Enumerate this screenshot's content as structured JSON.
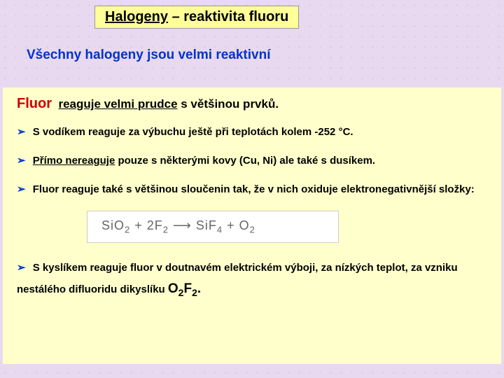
{
  "title": {
    "underlined": "Halogeny",
    "rest": " – reaktivita fluoru"
  },
  "subtitle": "Všechny halogeny jsou velmi reaktivní",
  "fluor": {
    "name": "Fluor",
    "under": "reaguje velmi prudce",
    "rest": " s většinou prvků."
  },
  "bullets": {
    "b1": "S vodíkem reaguje za výbuchu ještě při teplotách kolem -252 °C.",
    "b2_under": "Přímo nereaguje",
    "b2_rest": " pouze s některými kovy (Cu, Ni) ale také s dusíkem.",
    "b3": "Fluor reaguje také s většinou sloučenin tak, že v nich oxiduje elektronegativnější složky:",
    "b4_a": "S kyslíkem reaguje fluor v doutnavém elektrickém výboji, za nízkých teplot, za vzniku nestálého difluoridu dikyslíku ",
    "b4_formula_a": "O",
    "b4_formula_sub1": "2",
    "b4_formula_b": "F",
    "b4_formula_sub2": "2",
    "b4_formula_dot": "."
  },
  "equation": {
    "sio": "SiO",
    "two_a": "2",
    "plus1": " + 2F",
    "two_b": "2",
    "arrow": " ⟶ SiF",
    "four": "4",
    "plus2": " + O",
    "two_c": "2"
  },
  "arrow": "➢"
}
